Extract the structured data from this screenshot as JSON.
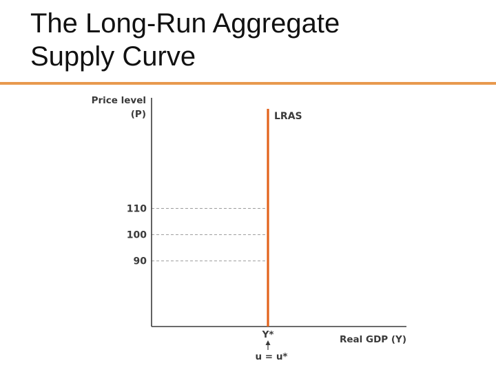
{
  "slide": {
    "title_line1": "The Long-Run Aggregate",
    "title_line2": "Supply Curve"
  },
  "colors": {
    "accent_rule": "#e8994e",
    "lras_line": "#e2621b",
    "axis": "#3a3a3a",
    "gridline": "#9a9a9a"
  },
  "chart_data": {
    "type": "line",
    "title": "",
    "ylabel_line1": "Price level",
    "ylabel_line2": "(P)",
    "xlabel": "Real GDP (Y)",
    "yticks": [
      {
        "value": 110,
        "label": "110"
      },
      {
        "value": 100,
        "label": "100"
      },
      {
        "value": 90,
        "label": "90"
      }
    ],
    "ylim": [
      65,
      150
    ],
    "xticks": [
      {
        "label": "Y*"
      }
    ],
    "x_annotation": "u = u*",
    "series": [
      {
        "name": "LRAS",
        "orientation": "vertical",
        "x": "Y*",
        "y_range": [
          65,
          150
        ]
      }
    ],
    "guides": [
      {
        "y": 110,
        "to_x": "Y*",
        "style": "dashed"
      },
      {
        "y": 100,
        "to_x": "Y*",
        "style": "dashed"
      },
      {
        "y": 90,
        "to_x": "Y*",
        "style": "dashed"
      }
    ],
    "grid": false,
    "legend": "none"
  }
}
